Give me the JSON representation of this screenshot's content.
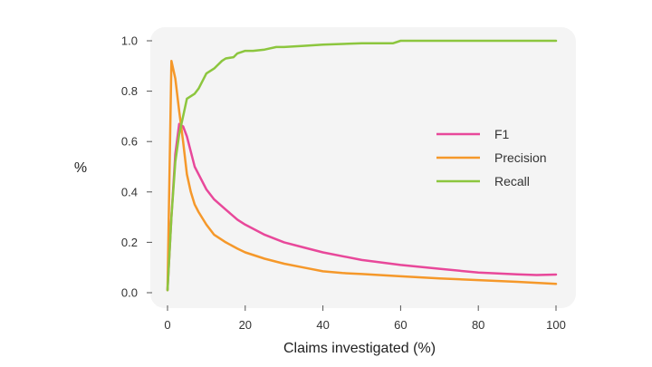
{
  "chart_data": {
    "type": "line",
    "xlabel": "Claims investigated (%)",
    "ylabel": "%",
    "xlim": [
      0,
      100
    ],
    "ylim": [
      0,
      1.0
    ],
    "x_ticks": [
      0,
      20,
      40,
      60,
      80,
      100
    ],
    "y_ticks": [
      0.0,
      0.2,
      0.4,
      0.6,
      0.8,
      1.0
    ],
    "x_tick_labels": [
      "0",
      "20",
      "40",
      "60",
      "80",
      "100"
    ],
    "y_tick_labels": [
      "0.0",
      "0.2",
      "0.4",
      "0.6",
      "0.8",
      "1.0"
    ],
    "grid": false,
    "legend_position": "right",
    "series": [
      {
        "name": "F1",
        "color": "#e8489a",
        "points": [
          [
            0,
            0.01
          ],
          [
            1,
            0.3
          ],
          [
            2,
            0.55
          ],
          [
            3,
            0.67
          ],
          [
            4,
            0.66
          ],
          [
            5,
            0.62
          ],
          [
            6,
            0.56
          ],
          [
            7,
            0.5
          ],
          [
            8,
            0.47
          ],
          [
            10,
            0.41
          ],
          [
            12,
            0.37
          ],
          [
            15,
            0.33
          ],
          [
            18,
            0.29
          ],
          [
            20,
            0.27
          ],
          [
            25,
            0.23
          ],
          [
            30,
            0.2
          ],
          [
            35,
            0.18
          ],
          [
            40,
            0.16
          ],
          [
            50,
            0.13
          ],
          [
            60,
            0.11
          ],
          [
            70,
            0.095
          ],
          [
            80,
            0.08
          ],
          [
            90,
            0.073
          ],
          [
            95,
            0.07
          ],
          [
            100,
            0.072
          ]
        ]
      },
      {
        "name": "Precision",
        "color": "#f5982a",
        "points": [
          [
            0,
            0.01
          ],
          [
            1,
            0.92
          ],
          [
            2,
            0.85
          ],
          [
            3,
            0.72
          ],
          [
            4,
            0.6
          ],
          [
            5,
            0.47
          ],
          [
            6,
            0.4
          ],
          [
            7,
            0.35
          ],
          [
            8,
            0.32
          ],
          [
            10,
            0.27
          ],
          [
            12,
            0.23
          ],
          [
            15,
            0.2
          ],
          [
            18,
            0.175
          ],
          [
            20,
            0.16
          ],
          [
            25,
            0.135
          ],
          [
            30,
            0.115
          ],
          [
            35,
            0.1
          ],
          [
            40,
            0.085
          ],
          [
            45,
            0.078
          ],
          [
            50,
            0.074
          ],
          [
            60,
            0.065
          ],
          [
            70,
            0.057
          ],
          [
            80,
            0.05
          ],
          [
            90,
            0.043
          ],
          [
            100,
            0.035
          ]
        ]
      },
      {
        "name": "Recall",
        "color": "#8cc63e",
        "points": [
          [
            0,
            0.01
          ],
          [
            1,
            0.3
          ],
          [
            2,
            0.52
          ],
          [
            3,
            0.63
          ],
          [
            4,
            0.7
          ],
          [
            5,
            0.77
          ],
          [
            7,
            0.79
          ],
          [
            8,
            0.81
          ],
          [
            10,
            0.87
          ],
          [
            12,
            0.89
          ],
          [
            14,
            0.92
          ],
          [
            15,
            0.93
          ],
          [
            17,
            0.935
          ],
          [
            18,
            0.95
          ],
          [
            20,
            0.96
          ],
          [
            22,
            0.96
          ],
          [
            25,
            0.965
          ],
          [
            28,
            0.975
          ],
          [
            30,
            0.975
          ],
          [
            35,
            0.98
          ],
          [
            40,
            0.985
          ],
          [
            50,
            0.99
          ],
          [
            58,
            0.99
          ],
          [
            60,
            1.0
          ],
          [
            80,
            1.0
          ],
          [
            100,
            1.0
          ]
        ]
      }
    ]
  }
}
